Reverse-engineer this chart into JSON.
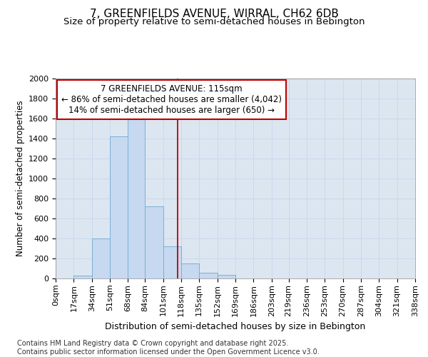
{
  "title_line1": "7, GREENFIELDS AVENUE, WIRRAL, CH62 6DB",
  "title_line2": "Size of property relative to semi-detached houses in Bebington",
  "xlabel": "Distribution of semi-detached houses by size in Bebington",
  "ylabel": "Number of semi-detached properties",
  "bin_edges": [
    0,
    17,
    34,
    51,
    68,
    84,
    101,
    118,
    135,
    152,
    169,
    186,
    203,
    219,
    236,
    253,
    270,
    287,
    304,
    321,
    338
  ],
  "bin_labels": [
    "0sqm",
    "17sqm",
    "34sqm",
    "51sqm",
    "68sqm",
    "84sqm",
    "101sqm",
    "118sqm",
    "135sqm",
    "152sqm",
    "169sqm",
    "186sqm",
    "203sqm",
    "219sqm",
    "236sqm",
    "253sqm",
    "270sqm",
    "287sqm",
    "304sqm",
    "321sqm",
    "338sqm"
  ],
  "bar_heights": [
    0,
    30,
    400,
    1420,
    1590,
    720,
    325,
    150,
    55,
    35,
    0,
    0,
    0,
    0,
    0,
    0,
    0,
    0,
    0,
    0
  ],
  "bar_color": "#c6d9f0",
  "bar_edge_color": "#7bafd4",
  "property_value": 115,
  "property_line_color": "#c00000",
  "annotation_line1": "7 GREENFIELDS AVENUE: 115sqm",
  "annotation_line2": "← 86% of semi-detached houses are smaller (4,042)",
  "annotation_line3": "14% of semi-detached houses are larger (650) →",
  "annotation_box_color": "#ffffff",
  "annotation_edge_color": "#c00000",
  "ylim": [
    0,
    2000
  ],
  "yticks": [
    0,
    200,
    400,
    600,
    800,
    1000,
    1200,
    1400,
    1600,
    1800,
    2000
  ],
  "grid_color": "#c8d8ec",
  "background_color": "#dce6f1",
  "footer_text": "Contains HM Land Registry data © Crown copyright and database right 2025.\nContains public sector information licensed under the Open Government Licence v3.0.",
  "title_fontsize": 11,
  "subtitle_fontsize": 9.5,
  "ylabel_fontsize": 8.5,
  "xlabel_fontsize": 9,
  "tick_fontsize": 8,
  "footer_fontsize": 7,
  "annot_fontsize": 8.5
}
